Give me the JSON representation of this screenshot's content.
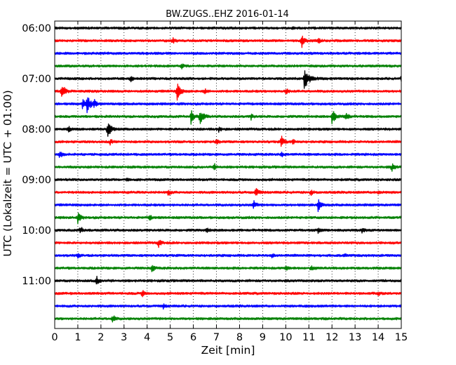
{
  "chart_data": {
    "type": "line",
    "title": "BW.ZUGS..EHZ 2016-01-14",
    "xlabel": "Zeit  [min]",
    "ylabel": "UTC (Lokalzeit = UTC + 01:00)",
    "xlim": [
      0,
      15
    ],
    "x_ticks": [
      "0",
      "1",
      "2",
      "3",
      "4",
      "5",
      "6",
      "7",
      "8",
      "9",
      "10",
      "11",
      "12",
      "13",
      "14",
      "15"
    ],
    "y_ticks": [
      {
        "label": "06:00",
        "trace": 0
      },
      {
        "label": "07:00",
        "trace": 4
      },
      {
        "label": "08:00",
        "trace": 8
      },
      {
        "label": "09:00",
        "trace": 12
      },
      {
        "label": "10:00",
        "trace": 16
      },
      {
        "label": "11:00",
        "trace": 20
      }
    ],
    "trace_interval_min": 15,
    "trace_count": 24,
    "color_cycle": [
      "#000000",
      "#ff0000",
      "#0000ff",
      "#008000"
    ],
    "grid": "vertical dotted at each minute",
    "traces": [
      {
        "start": "06:00",
        "events": [
          {
            "t": 10.3,
            "amp": 0.15
          }
        ]
      },
      {
        "start": "06:15",
        "events": [
          {
            "t": 5.1,
            "amp": 0.4
          },
          {
            "t": 10.7,
            "amp": 0.9
          },
          {
            "t": 11.4,
            "amp": 0.4
          }
        ]
      },
      {
        "start": "06:30",
        "events": []
      },
      {
        "start": "06:45",
        "events": [
          {
            "t": 5.5,
            "amp": 0.3
          }
        ]
      },
      {
        "start": "07:00",
        "events": [
          {
            "t": 3.3,
            "amp": 0.5
          },
          {
            "t": 10.8,
            "amp": 2.2
          },
          {
            "t": 15.0,
            "amp": 0.6
          }
        ]
      },
      {
        "start": "07:15",
        "events": [
          {
            "t": 0.3,
            "amp": 1.3
          },
          {
            "t": 5.3,
            "amp": 1.4
          },
          {
            "t": 6.5,
            "amp": 0.4
          },
          {
            "t": 10.0,
            "amp": 0.5
          }
        ]
      },
      {
        "start": "07:30",
        "events": [
          {
            "t": 1.2,
            "amp": 0.8
          },
          {
            "t": 1.4,
            "amp": 1.5
          },
          {
            "t": 1.7,
            "amp": 0.6
          }
        ]
      },
      {
        "start": "07:45",
        "events": [
          {
            "t": 5.9,
            "amp": 1.1
          },
          {
            "t": 6.3,
            "amp": 1.2
          },
          {
            "t": 8.5,
            "amp": 0.4
          },
          {
            "t": 12.0,
            "amp": 1.3
          },
          {
            "t": 12.6,
            "amp": 0.7
          }
        ]
      },
      {
        "start": "08:00",
        "events": [
          {
            "t": 0.6,
            "amp": 0.4
          },
          {
            "t": 2.3,
            "amp": 1.3
          },
          {
            "t": 7.1,
            "amp": 0.4
          }
        ]
      },
      {
        "start": "08:15",
        "events": [
          {
            "t": 2.4,
            "amp": 0.4
          },
          {
            "t": 7.0,
            "amp": 0.4
          },
          {
            "t": 9.8,
            "amp": 1.0
          },
          {
            "t": 10.3,
            "amp": 0.4
          }
        ]
      },
      {
        "start": "08:30",
        "events": [
          {
            "t": 0.2,
            "amp": 0.6
          },
          {
            "t": 9.8,
            "amp": 0.4
          }
        ]
      },
      {
        "start": "08:45",
        "events": [
          {
            "t": 6.9,
            "amp": 0.5
          },
          {
            "t": 14.6,
            "amp": 0.6
          }
        ]
      },
      {
        "start": "09:00",
        "events": [
          {
            "t": 3.1,
            "amp": 0.3
          }
        ]
      },
      {
        "start": "09:15",
        "events": [
          {
            "t": 4.9,
            "amp": 0.5
          },
          {
            "t": 8.7,
            "amp": 0.8
          },
          {
            "t": 11.1,
            "amp": 0.4
          },
          {
            "t": 14.0,
            "amp": 0.4
          }
        ]
      },
      {
        "start": "09:30",
        "events": [
          {
            "t": 8.6,
            "amp": 0.7
          },
          {
            "t": 11.4,
            "amp": 1.0
          }
        ]
      },
      {
        "start": "09:45",
        "events": [
          {
            "t": 1.0,
            "amp": 0.8
          },
          {
            "t": 4.1,
            "amp": 0.4
          }
        ]
      },
      {
        "start": "10:00",
        "events": [
          {
            "t": 1.1,
            "amp": 0.6
          },
          {
            "t": 6.6,
            "amp": 0.4
          },
          {
            "t": 11.4,
            "amp": 0.4
          },
          {
            "t": 13.3,
            "amp": 0.4
          }
        ]
      },
      {
        "start": "10:15",
        "events": [
          {
            "t": 4.5,
            "amp": 0.6
          }
        ]
      },
      {
        "start": "10:30",
        "events": [
          {
            "t": 1.0,
            "amp": 0.3
          },
          {
            "t": 9.4,
            "amp": 0.3
          },
          {
            "t": 12.5,
            "amp": 0.3
          }
        ]
      },
      {
        "start": "10:45",
        "events": [
          {
            "t": 4.2,
            "amp": 0.6
          },
          {
            "t": 10.0,
            "amp": 0.5
          },
          {
            "t": 11.1,
            "amp": 0.4
          }
        ]
      },
      {
        "start": "11:00",
        "events": [
          {
            "t": 1.8,
            "amp": 0.8
          }
        ]
      },
      {
        "start": "11:15",
        "events": [
          {
            "t": 3.8,
            "amp": 0.5
          },
          {
            "t": 14.0,
            "amp": 0.3
          }
        ]
      },
      {
        "start": "11:30",
        "events": [
          {
            "t": 4.7,
            "amp": 0.3
          }
        ]
      },
      {
        "start": "11:45",
        "events": [
          {
            "t": 2.5,
            "amp": 0.6
          }
        ]
      }
    ]
  }
}
